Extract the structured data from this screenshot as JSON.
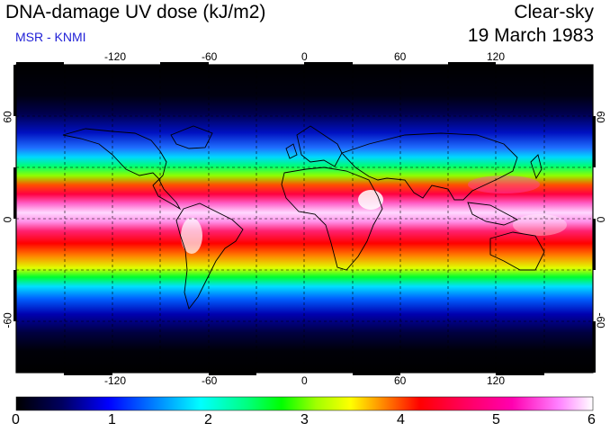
{
  "title": "DNA-damage UV dose (kJ/m2)",
  "subtitle": "MSR - KNMI",
  "condition": "Clear-sky",
  "date": "19 March 1983",
  "map": {
    "projection": "plate-carree",
    "lon_range": [
      -180,
      180
    ],
    "lat_range": [
      -90,
      90
    ],
    "lon_ticks": [
      "-120",
      "-60",
      "0",
      "60",
      "120"
    ],
    "lat_ticks": [
      "60",
      "0",
      "-60"
    ],
    "grid": "dashed"
  },
  "colorbar": {
    "min": 0,
    "max": 6,
    "ticks": [
      "0",
      "1",
      "2",
      "3",
      "4",
      "5",
      "6"
    ],
    "stops": [
      "#000000",
      "#000060",
      "#0000ff",
      "#0080ff",
      "#00ffff",
      "#00ff80",
      "#00ff00",
      "#a0ff00",
      "#ffff00",
      "#ff8000",
      "#ff0000",
      "#ff0060",
      "#ff00b0",
      "#ff80ff",
      "#ffffff"
    ]
  }
}
